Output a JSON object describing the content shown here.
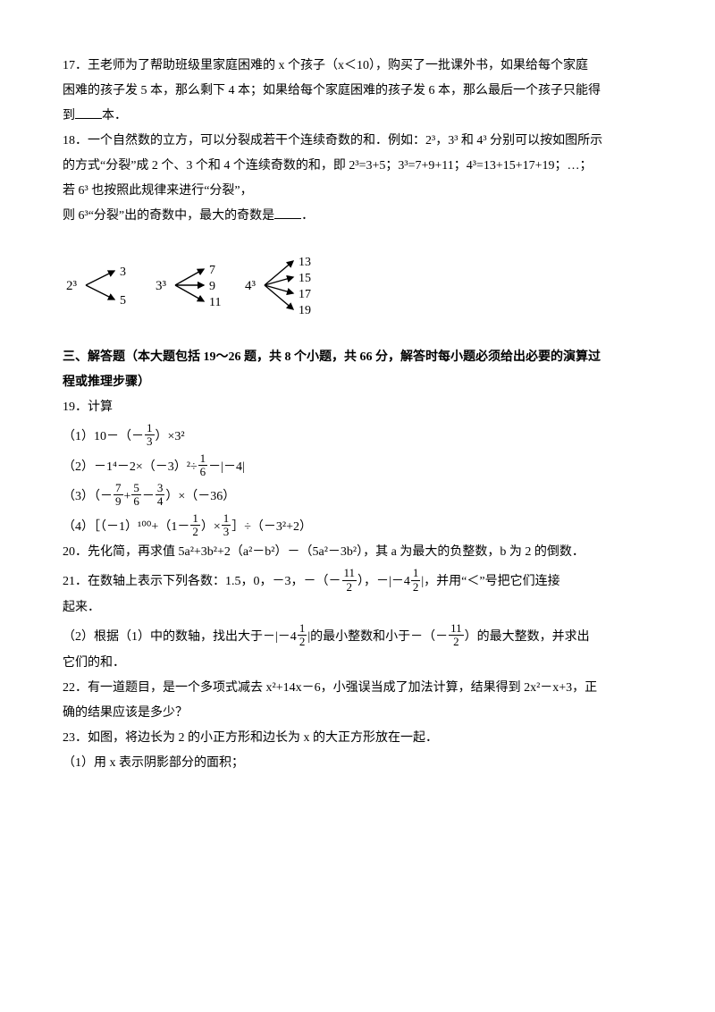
{
  "q17": {
    "text_a": "17．王老师为了帮助班级里家庭困难的 x 个孩子（x＜10），购买了一批课外书，如果给每个家庭",
    "text_b": "困难的孩子发 5 本，那么剩下 4 本；如果给每个家庭困难的孩子发 6 本，那么最后一个孩子只能得",
    "text_c_prefix": "到",
    "text_c_suffix": "本．"
  },
  "q18": {
    "l1": "18．一个自然数的立方，可以分裂成若干个连续奇数的和．例如：2³，3³ 和 4³ 分别可以按如图所示",
    "l2": "的方式“分裂”成 2 个、3 个和 4 个连续奇数的和，即 2³=3+5；3³=7+9+11；4³=13+15+17+19；…；",
    "l3": "若 6³ 也按照此规律来进行“分裂”，",
    "l4_prefix": "则 6³“分裂”出的奇数中，最大的奇数是",
    "l4_suffix": "．",
    "diagram": {
      "groups": [
        {
          "base": "2³",
          "values": [
            "3",
            "5"
          ]
        },
        {
          "base": "3³",
          "values": [
            "7",
            "9",
            "11"
          ]
        },
        {
          "base": "4³",
          "values": [
            "13",
            "15",
            "17",
            "19"
          ]
        }
      ],
      "colors": {
        "stroke": "#000000",
        "text": "#000000"
      }
    }
  },
  "section3": {
    "title": "三、解答题（本大题包括 19～26 题，共 8 个小题，共 66 分，解答时每小题必须给出必要的演算过",
    "title2": "程或推理步骤）"
  },
  "q19": {
    "head": "19．计算",
    "p1_a": "（1）10－（－",
    "p1_b": "）×3²",
    "f1": {
      "n": "1",
      "d": "3"
    },
    "p2_a": "（2）－1⁴－2×（－3）²÷",
    "p2_b": "－|－4|",
    "f2": {
      "n": "1",
      "d": "6"
    },
    "p3_a": "（3）",
    "p3_b": "（－",
    "p3_c": "+",
    "p3_d": "－",
    "p3_e": "）",
    "p3_f": "×（－36）",
    "f3a": {
      "n": "7",
      "d": "9"
    },
    "f3b": {
      "n": "5",
      "d": "6"
    },
    "f3c": {
      "n": "3",
      "d": "4"
    },
    "p4_a": "（4）［（－1）¹⁰⁰+（1－",
    "p4_b": "）×",
    "p4_c": "］÷（－3²+2）",
    "f4a": {
      "n": "1",
      "d": "2"
    },
    "f4b": {
      "n": "1",
      "d": "3"
    }
  },
  "q20": {
    "text": "20．先化简，再求值 5a²+3b²+2（a²－b²）－（5a²－3b²），其 a 为最大的负整数，b 为 2 的倒数．"
  },
  "q21": {
    "l1_a": "21．在数轴上表示下列各数：1.5，0，－3，－（－",
    "l1_b": "），－|－4",
    "l1_c": "|，并用“＜”号把它们连接",
    "l1_d": "起来．",
    "f1": {
      "n": "11",
      "d": "2"
    },
    "f2": {
      "n": "1",
      "d": "2"
    },
    "l2_a": "（2）根据（1）中的数轴，找出大于－|－4",
    "l2_b": "|的最小整数和小于－（－",
    "l2_c": "）的最大整数，并求出",
    "l2_d": "它们的和．",
    "f3": {
      "n": "1",
      "d": "2"
    },
    "f4": {
      "n": "11",
      "d": "2"
    }
  },
  "q22": {
    "l1": "22．有一道题目，是一个多项式减去 x²+14x－6，小强误当成了加法计算，结果得到 2x²－x+3，正",
    "l2": "确的结果应该是多少？"
  },
  "q23": {
    "l1": "23．如图，将边长为 2 的小正方形和边长为 x 的大正方形放在一起．",
    "l2": "（1）用 x 表示阴影部分的面积；"
  }
}
